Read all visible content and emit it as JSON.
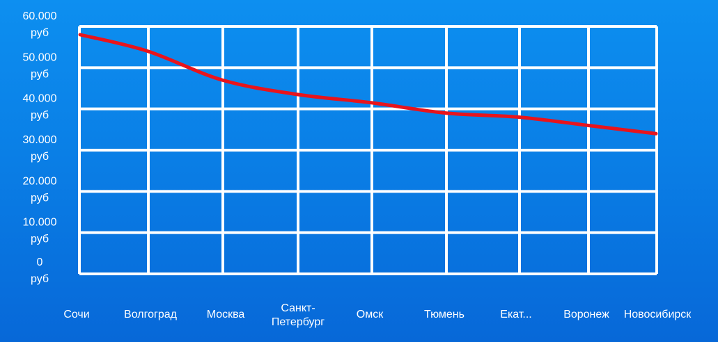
{
  "colors": {
    "background_top": "#0d8ff0",
    "background_bottom": "#0768d8",
    "grid": "#ffffff",
    "line": "#e8141c",
    "text": "#ffffff"
  },
  "chart_data": {
    "type": "line",
    "title": "",
    "xlabel": "",
    "ylabel": "",
    "grid": true,
    "categories": [
      "Сочи",
      "Волгоград",
      "Москва",
      "Санкт-Петербург",
      "Омск",
      "Тюмень",
      "Екат...",
      "Воронеж",
      "Новосибирск"
    ],
    "category_label_lines": [
      [
        "Сочи"
      ],
      [
        "Волгоград"
      ],
      [
        "Москва"
      ],
      [
        "Санкт-",
        "Петербург"
      ],
      [
        "Омск"
      ],
      [
        "Тюмень"
      ],
      [
        "Екат..."
      ],
      [
        "Воронеж"
      ],
      [
        "Новосибирск"
      ]
    ],
    "values": [
      58000,
      54000,
      47000,
      43500,
      41500,
      39000,
      38000,
      36000,
      34000
    ],
    "ylim": [
      0,
      60000
    ],
    "y_ticks": [
      0,
      10000,
      20000,
      30000,
      40000,
      50000,
      60000
    ],
    "y_tick_labels": [
      [
        "0",
        "руб"
      ],
      [
        "10.000",
        "руб"
      ],
      [
        "20.000",
        "руб"
      ],
      [
        "30.000",
        "руб"
      ],
      [
        "40.000",
        "руб"
      ],
      [
        "50.000",
        "руб"
      ],
      [
        "60.000",
        "руб"
      ]
    ]
  }
}
